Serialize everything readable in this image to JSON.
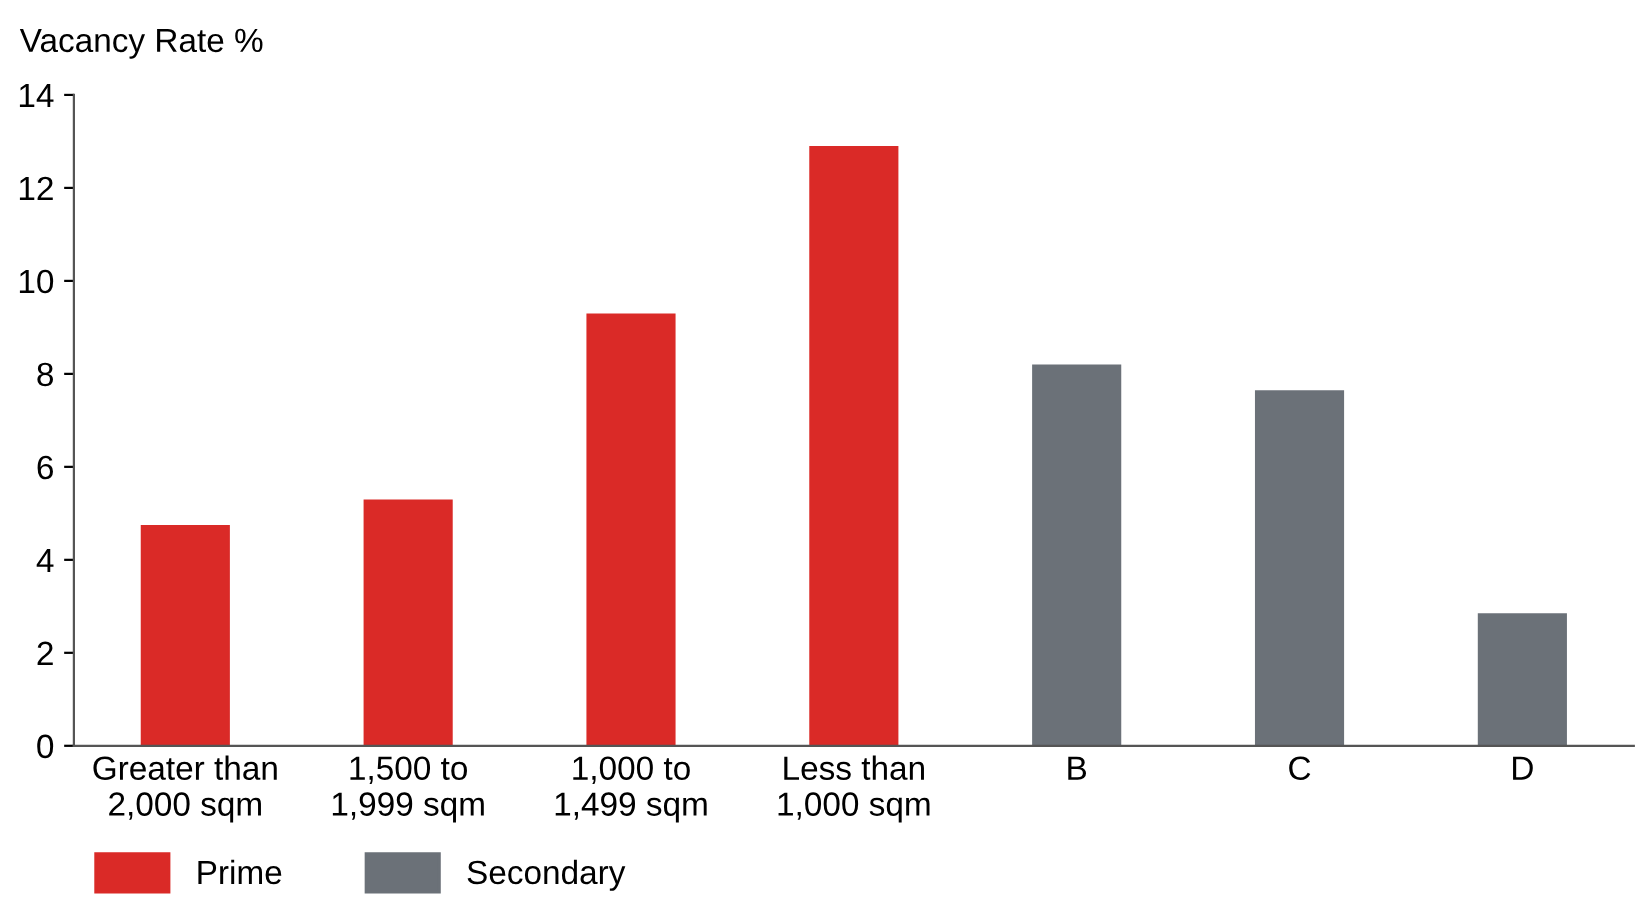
{
  "chart_data": {
    "type": "bar",
    "ylabel": "Vacancy Rate %",
    "categories": [
      "Greater than\n2,000 sqm",
      "1,500 to\n1,999 sqm",
      "1,000 to\n1,499 sqm",
      "Less than\n1,000 sqm",
      "B",
      "C",
      "D"
    ],
    "series": [
      {
        "name": "Prime",
        "color": "#da2a27",
        "values": [
          4.75,
          5.3,
          9.3,
          12.9,
          null,
          null,
          null
        ]
      },
      {
        "name": "Secondary",
        "color": "#6b7178",
        "values": [
          null,
          null,
          null,
          null,
          8.2,
          7.65,
          2.85
        ]
      }
    ],
    "ylim": [
      0,
      14
    ],
    "yticks": [
      0,
      2,
      4,
      6,
      8,
      10,
      12,
      14
    ],
    "grid": false,
    "legend": "bottom left"
  }
}
